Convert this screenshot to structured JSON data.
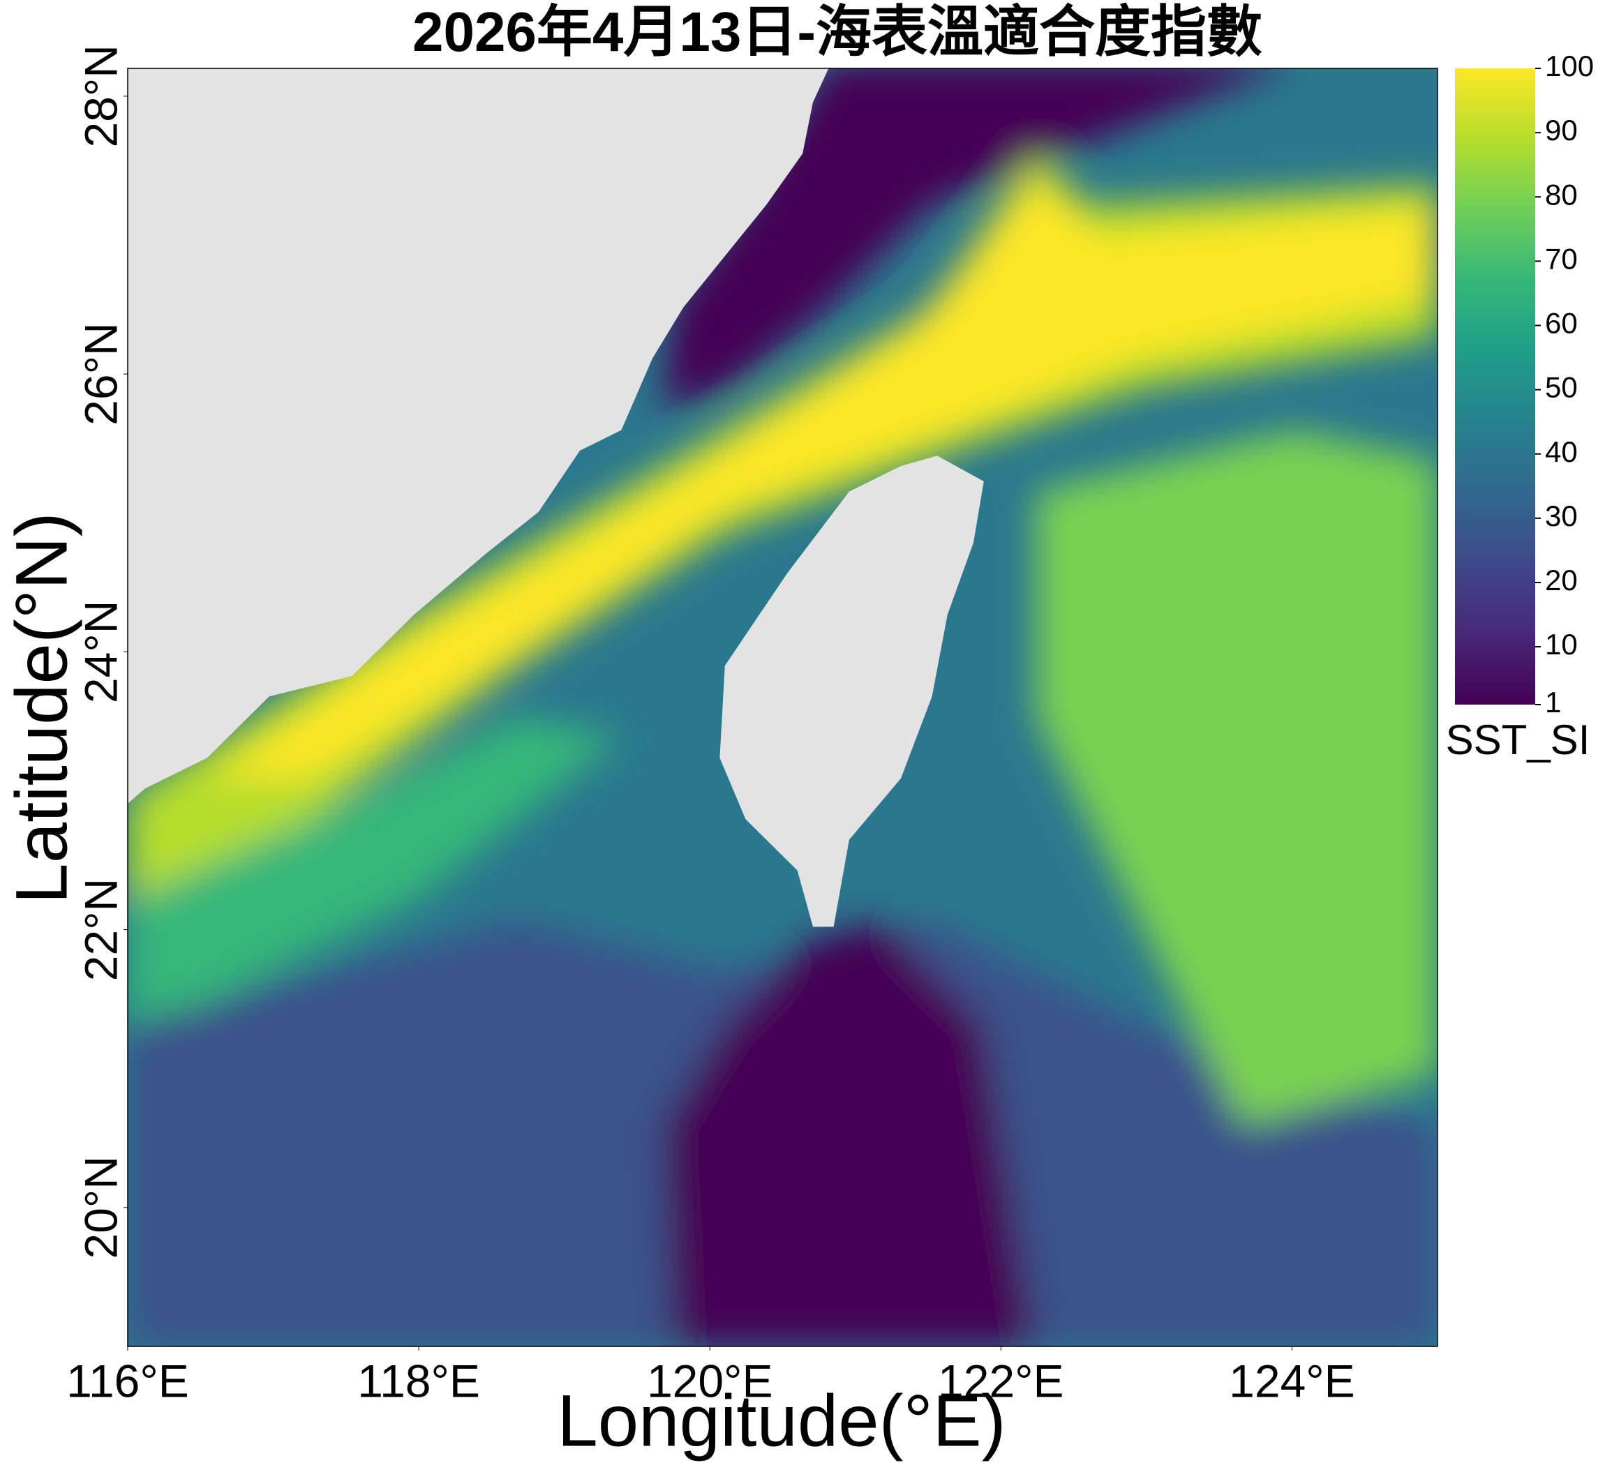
{
  "chart_data": {
    "type": "heatmap",
    "title": "2026年4月13日-海表溫適合度指數",
    "x_label": "Longitude(°E)",
    "y_label": "Latitude(°N)",
    "xlim": [
      116,
      125
    ],
    "ylim": [
      19,
      28.2
    ],
    "xticks": [
      {
        "value": 116,
        "label": "116°E"
      },
      {
        "value": 118,
        "label": "118°E"
      },
      {
        "value": 120,
        "label": "120°E"
      },
      {
        "value": 122,
        "label": "122°E"
      },
      {
        "value": 124,
        "label": "124°E"
      }
    ],
    "yticks": [
      {
        "value": 20,
        "label": "20°N"
      },
      {
        "value": 22,
        "label": "22°N"
      },
      {
        "value": 24,
        "label": "24°N"
      },
      {
        "value": 26,
        "label": "26°N"
      },
      {
        "value": 28,
        "label": "28°N"
      }
    ],
    "colorbar": {
      "label": "SST_SI",
      "lim": [
        1,
        100
      ],
      "ticks": [
        1,
        10,
        20,
        30,
        40,
        50,
        60,
        70,
        80,
        90,
        100
      ],
      "colormap": "viridis"
    }
  }
}
